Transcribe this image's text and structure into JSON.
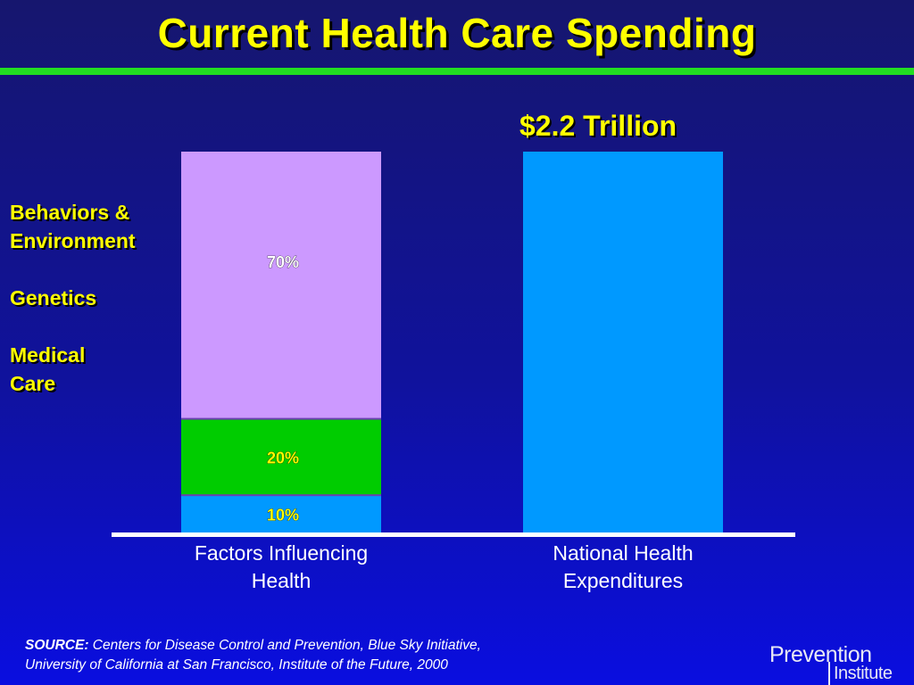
{
  "slide": {
    "title": "Current Health Care Spending",
    "source_label": "SOURCE:",
    "source_line1": "Centers for Disease Control and Prevention, Blue Sky Initiative,",
    "source_line2": "University of California at San Francisco, Institute of the Future, 2000",
    "logo_word1": "Prevention",
    "logo_word2": "Institute"
  },
  "colors": {
    "title": "#ffff00",
    "rule": "#22dd22",
    "behaviors": "#cc99ff",
    "genetics": "#00cc00",
    "medical": "#0099ff",
    "axis": "#ffffff"
  },
  "chart_data": {
    "type": "bar",
    "stacked": true,
    "categories": [
      "Factors Influencing\nHealth",
      "National Health\nExpenditures"
    ],
    "series": [
      {
        "name": "Medical Care",
        "values": [
          10,
          100
        ],
        "color": "#0099ff",
        "labels": [
          "10%",
          ""
        ]
      },
      {
        "name": "Genetics",
        "values": [
          20,
          0
        ],
        "color": "#00cc00",
        "labels": [
          "20%",
          ""
        ]
      },
      {
        "name": "Behaviors & Environment",
        "values": [
          70,
          0
        ],
        "color": "#cc99ff",
        "labels": [
          "70%",
          ""
        ]
      }
    ],
    "annotation": "$2.2 Trillion",
    "legend": [
      "Behaviors &\nEnvironment",
      "Genetics",
      "Medical Care"
    ],
    "legend_position": "left",
    "ylim": [
      0,
      100
    ],
    "grid": false
  }
}
